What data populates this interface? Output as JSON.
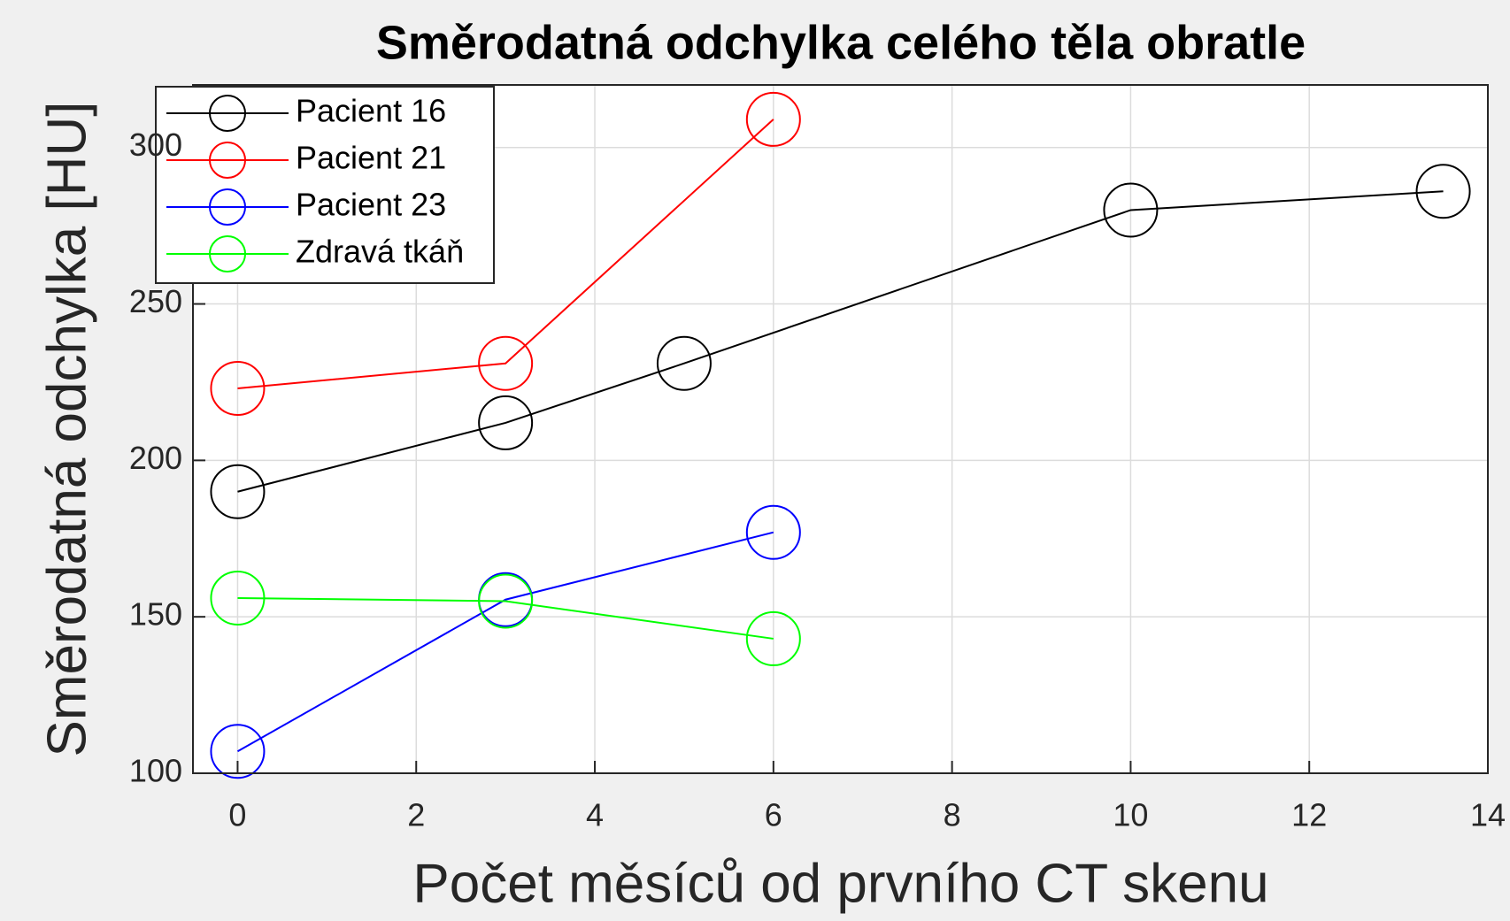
{
  "chart_data": {
    "type": "line",
    "title": "Směrodatná odchylka celého těla obratle",
    "xlabel": "Počet měsíců od prvního CT skenu",
    "ylabel": "Směrodatná odchylka [HU]",
    "series": [
      {
        "name": "Pacient 16",
        "color": "#000000",
        "x": [
          0,
          3,
          5,
          10,
          13.5
        ],
        "values": [
          190,
          212,
          231,
          280,
          286
        ]
      },
      {
        "name": "Pacient 21",
        "color": "#ff0000",
        "x": [
          0,
          3,
          6
        ],
        "values": [
          223,
          231,
          309
        ]
      },
      {
        "name": "Pacient 23",
        "color": "#0000ff",
        "x": [
          0,
          3,
          6
        ],
        "values": [
          107,
          155.5,
          177
        ]
      },
      {
        "name": "Zdravá tkáň",
        "color": "#00ff00",
        "x": [
          0,
          3,
          6
        ],
        "values": [
          156,
          155,
          143
        ]
      }
    ],
    "xlim": [
      -0.5,
      14
    ],
    "xticks": [
      0,
      2,
      4,
      6,
      8,
      10,
      12,
      14
    ],
    "ylim": [
      100,
      320
    ],
    "yticks": [
      100,
      150,
      200,
      250,
      300
    ],
    "grid": true,
    "legend": "northwest",
    "marker": "circle"
  }
}
